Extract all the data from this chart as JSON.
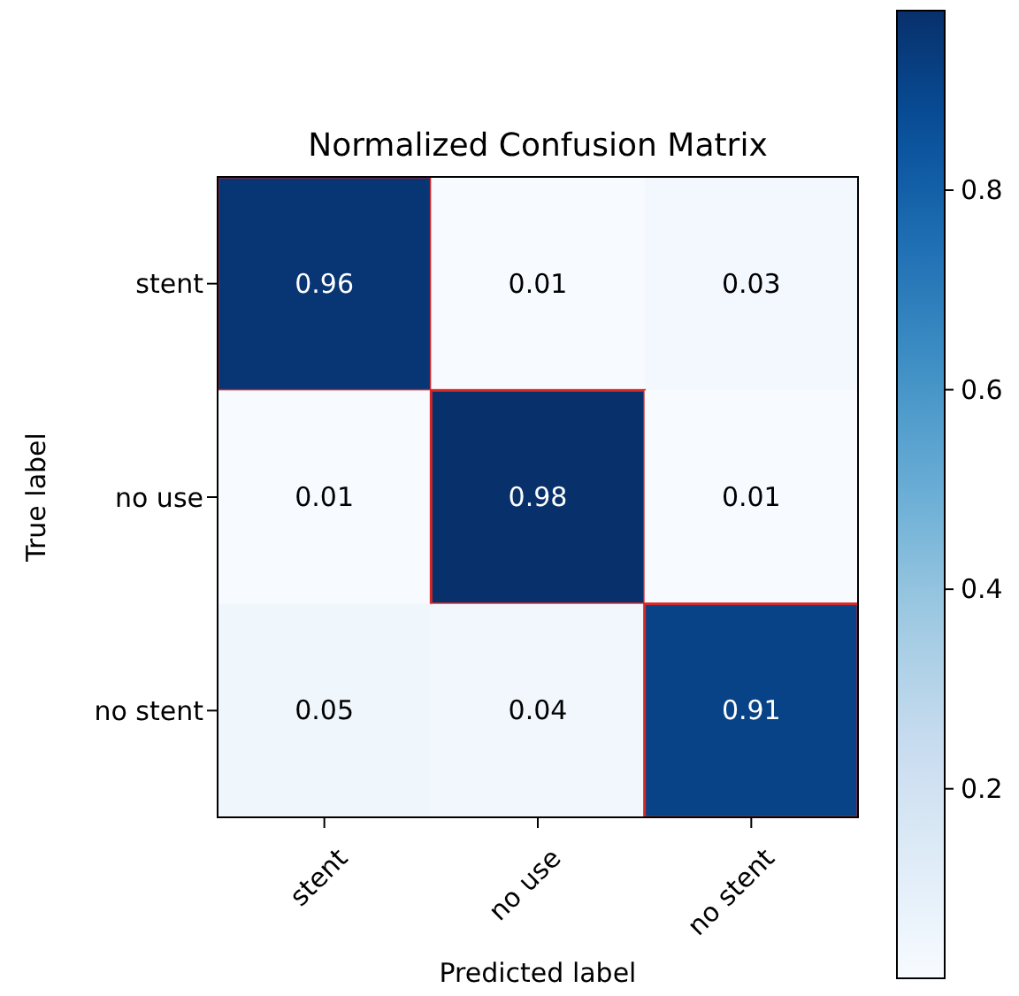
{
  "chart_data": {
    "type": "heatmap",
    "title": "Normalized Confusion Matrix",
    "xlabel": "Predicted label",
    "ylabel": "True label",
    "categories": [
      "stent",
      "no use",
      "no stent"
    ],
    "y_categories": [
      "stent",
      "no use",
      "no stent"
    ],
    "cells": [
      [
        0.96,
        0.01,
        0.03
      ],
      [
        0.01,
        0.98,
        0.01
      ],
      [
        0.05,
        0.04,
        0.91
      ]
    ],
    "clim": [
      0.01,
      0.98
    ],
    "cticks": [
      0.2,
      0.4,
      0.6,
      0.8
    ],
    "data_labels": true
  }
}
